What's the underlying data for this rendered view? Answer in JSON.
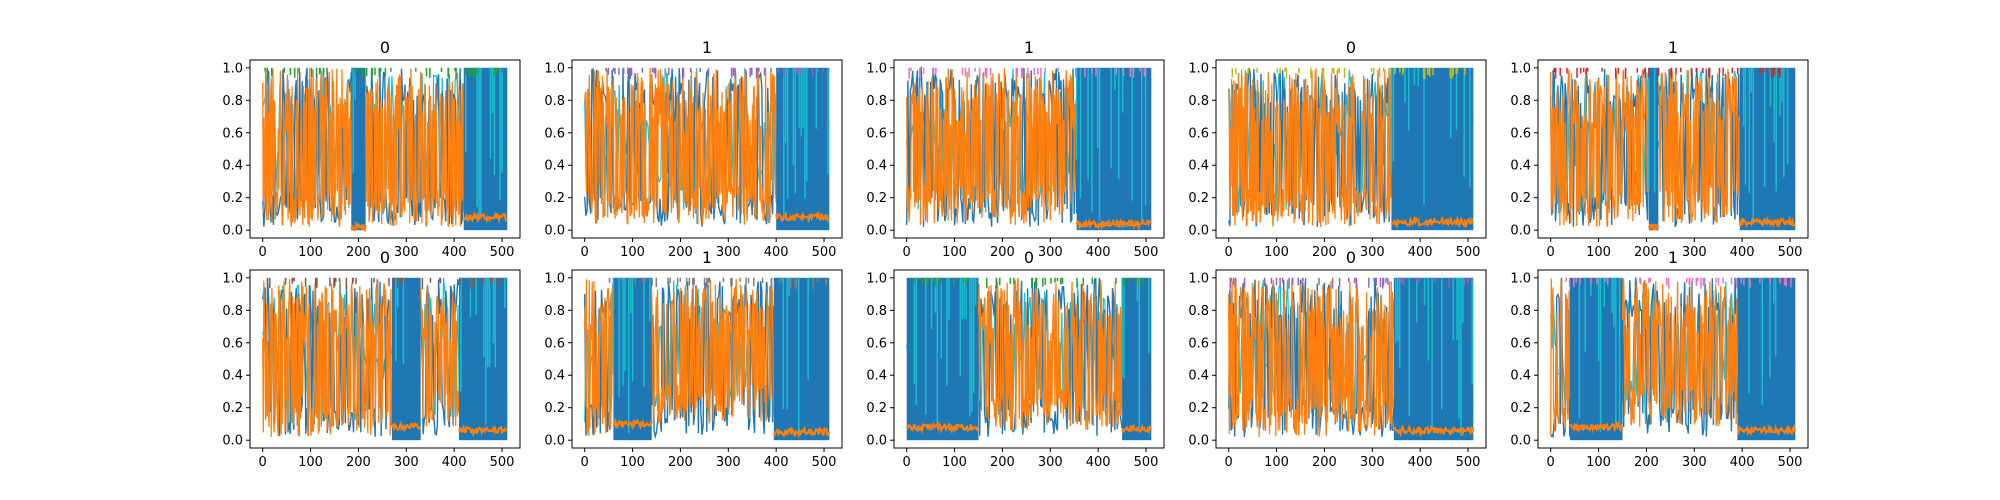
{
  "chart_data": [
    {
      "type": "line",
      "title": "0",
      "x_range": [
        0,
        511
      ],
      "ylim": [
        0.0,
        1.0
      ],
      "xticks": [
        "0",
        "100",
        "200",
        "300",
        "400",
        "500"
      ],
      "yticks": [
        "0.0",
        "0.2",
        "0.4",
        "0.6",
        "0.8",
        "1.0"
      ],
      "grid": false,
      "legend": "none",
      "segments": [
        {
          "x": [
            0,
            185
          ],
          "dominant": "orange",
          "orange_low": 0.02
        },
        {
          "x": [
            185,
            215
          ],
          "dominant": "blue",
          "orange_low": 0.02
        },
        {
          "x": [
            215,
            420
          ],
          "dominant": "orange",
          "orange_low": 0.02
        },
        {
          "x": [
            420,
            511
          ],
          "dominant": "blue",
          "orange_low": 0.08
        }
      ]
    },
    {
      "type": "line",
      "title": "1",
      "x_range": [
        0,
        511
      ],
      "ylim": [
        0.0,
        1.0
      ],
      "xticks": [
        "0",
        "100",
        "200",
        "300",
        "400",
        "500"
      ],
      "yticks": [
        "0.0",
        "0.2",
        "0.4",
        "0.6",
        "0.8",
        "1.0"
      ],
      "grid": false,
      "legend": "none",
      "segments": [
        {
          "x": [
            0,
            400
          ],
          "dominant": "orange",
          "orange_low": 0.03
        },
        {
          "x": [
            400,
            511
          ],
          "dominant": "blue",
          "orange_low": 0.08
        }
      ]
    },
    {
      "type": "line",
      "title": "1",
      "x_range": [
        0,
        511
      ],
      "ylim": [
        0.0,
        1.0
      ],
      "xticks": [
        "0",
        "100",
        "200",
        "300",
        "400",
        "500"
      ],
      "yticks": [
        "0.0",
        "0.2",
        "0.4",
        "0.6",
        "0.8",
        "1.0"
      ],
      "grid": false,
      "legend": "none",
      "segments": [
        {
          "x": [
            0,
            355
          ],
          "dominant": "orange",
          "orange_low": 0.03
        },
        {
          "x": [
            355,
            511
          ],
          "dominant": "blue",
          "orange_low": 0.04
        }
      ]
    },
    {
      "type": "line",
      "title": "0",
      "x_range": [
        0,
        511
      ],
      "ylim": [
        0.0,
        1.0
      ],
      "xticks": [
        "0",
        "100",
        "200",
        "300",
        "400",
        "500"
      ],
      "yticks": [
        "0.0",
        "0.2",
        "0.4",
        "0.6",
        "0.8",
        "1.0"
      ],
      "grid": false,
      "legend": "none",
      "segments": [
        {
          "x": [
            0,
            340
          ],
          "dominant": "orange",
          "orange_low": 0.02
        },
        {
          "x": [
            340,
            511
          ],
          "dominant": "blue",
          "orange_low": 0.05
        }
      ]
    },
    {
      "type": "line",
      "title": "1",
      "x_range": [
        0,
        511
      ],
      "ylim": [
        0.0,
        1.0
      ],
      "xticks": [
        "0",
        "100",
        "200",
        "300",
        "400",
        "500"
      ],
      "yticks": [
        "0.0",
        "0.2",
        "0.4",
        "0.6",
        "0.8",
        "1.0"
      ],
      "grid": false,
      "legend": "none",
      "segments": [
        {
          "x": [
            0,
            205
          ],
          "dominant": "orange",
          "orange_low": 0.02
        },
        {
          "x": [
            205,
            225
          ],
          "dominant": "blue",
          "orange_low": 0.02
        },
        {
          "x": [
            225,
            395
          ],
          "dominant": "orange",
          "orange_low": 0.04
        },
        {
          "x": [
            395,
            511
          ],
          "dominant": "blue",
          "orange_low": 0.05
        }
      ]
    },
    {
      "type": "line",
      "title": "0",
      "x_range": [
        0,
        511
      ],
      "ylim": [
        0.0,
        1.0
      ],
      "xticks": [
        "0",
        "100",
        "200",
        "300",
        "400",
        "500"
      ],
      "yticks": [
        "0.0",
        "0.2",
        "0.4",
        "0.6",
        "0.8",
        "1.0"
      ],
      "grid": false,
      "legend": "none",
      "segments": [
        {
          "x": [
            0,
            270
          ],
          "dominant": "orange",
          "orange_low": 0.02
        },
        {
          "x": [
            270,
            330
          ],
          "dominant": "blue",
          "orange_low": 0.08
        },
        {
          "x": [
            330,
            410
          ],
          "dominant": "orange",
          "orange_low": 0.08
        },
        {
          "x": [
            410,
            511
          ],
          "dominant": "blue",
          "orange_low": 0.06
        }
      ]
    },
    {
      "type": "line",
      "title": "1",
      "x_range": [
        0,
        511
      ],
      "ylim": [
        0.0,
        1.0
      ],
      "xticks": [
        "0",
        "100",
        "200",
        "300",
        "400",
        "500"
      ],
      "yticks": [
        "0.0",
        "0.2",
        "0.4",
        "0.6",
        "0.8",
        "1.0"
      ],
      "grid": false,
      "legend": "none",
      "segments": [
        {
          "x": [
            0,
            60
          ],
          "dominant": "orange",
          "orange_low": 0.02
        },
        {
          "x": [
            60,
            140
          ],
          "dominant": "blue",
          "orange_low": 0.1
        },
        {
          "x": [
            140,
            395
          ],
          "dominant": "orange",
          "orange_low": 0.1
        },
        {
          "x": [
            395,
            511
          ],
          "dominant": "blue",
          "orange_low": 0.05
        }
      ]
    },
    {
      "type": "line",
      "title": "0",
      "x_range": [
        0,
        511
      ],
      "ylim": [
        0.0,
        1.0
      ],
      "xticks": [
        "0",
        "100",
        "200",
        "300",
        "400",
        "500"
      ],
      "yticks": [
        "0.0",
        "0.2",
        "0.4",
        "0.6",
        "0.8",
        "1.0"
      ],
      "grid": false,
      "legend": "none",
      "segments": [
        {
          "x": [
            0,
            150
          ],
          "dominant": "blue",
          "orange_low": 0.08
        },
        {
          "x": [
            150,
            450
          ],
          "dominant": "orange",
          "orange_low": 0.06
        },
        {
          "x": [
            450,
            511
          ],
          "dominant": "blue",
          "orange_low": 0.07
        }
      ]
    },
    {
      "type": "line",
      "title": "0",
      "x_range": [
        0,
        511
      ],
      "ylim": [
        0.0,
        1.0
      ],
      "xticks": [
        "0",
        "100",
        "200",
        "300",
        "400",
        "500"
      ],
      "yticks": [
        "0.0",
        "0.2",
        "0.4",
        "0.6",
        "0.8",
        "1.0"
      ],
      "grid": false,
      "legend": "none",
      "segments": [
        {
          "x": [
            0,
            345
          ],
          "dominant": "orange",
          "orange_low": 0.02
        },
        {
          "x": [
            345,
            511
          ],
          "dominant": "blue",
          "orange_low": 0.06
        }
      ]
    },
    {
      "type": "line",
      "title": "1",
      "x_range": [
        0,
        511
      ],
      "ylim": [
        0.0,
        1.0
      ],
      "xticks": [
        "0",
        "100",
        "200",
        "300",
        "400",
        "500"
      ],
      "yticks": [
        "0.0",
        "0.2",
        "0.4",
        "0.6",
        "0.8",
        "1.0"
      ],
      "grid": false,
      "legend": "none",
      "segments": [
        {
          "x": [
            0,
            40
          ],
          "dominant": "orange",
          "orange_low": 0.02
        },
        {
          "x": [
            40,
            150
          ],
          "dominant": "blue",
          "orange_low": 0.08
        },
        {
          "x": [
            150,
            390
          ],
          "dominant": "orange",
          "orange_low": 0.08
        },
        {
          "x": [
            390,
            511
          ],
          "dominant": "blue",
          "orange_low": 0.06
        }
      ]
    }
  ],
  "colors": {
    "orange": "#ff7f0e",
    "blue": "#1f77b4",
    "cyan": "#17becf",
    "accents": [
      "#2ca02c",
      "#9467bd",
      "#e377c2",
      "#bcbd22",
      "#d62728",
      "#8c564b",
      "#7f7f7f"
    ]
  }
}
